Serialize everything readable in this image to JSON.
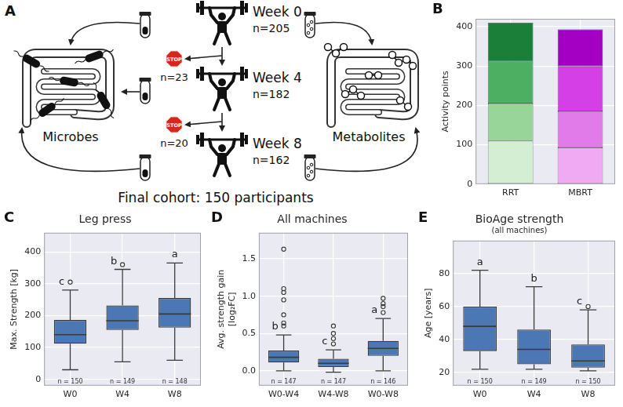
{
  "diagram": {
    "panel": "A",
    "stages": [
      {
        "label": "Week 0",
        "n": "n=205"
      },
      {
        "label": "Week 4",
        "n": "n=182"
      },
      {
        "label": "Week 8",
        "n": "n=162"
      }
    ],
    "dropouts": [
      {
        "sign": "STOP",
        "n": "n=23"
      },
      {
        "sign": "STOP",
        "n": "n=20"
      }
    ],
    "left": "Microbes",
    "right": "Metabolites",
    "footer": "Final cohort: 150 participants"
  },
  "chart_data": [
    {
      "type": "bar",
      "panel": "B",
      "y_label": "Activity points",
      "categories": [
        "RRT",
        "MBRT"
      ],
      "series": [
        {
          "colors": [
            "#d3eed3",
            "#f0aaf4"
          ],
          "values": [
            110,
            93
          ]
        },
        {
          "colors": [
            "#98d598",
            "#e27bea"
          ],
          "values": [
            95,
            92
          ]
        },
        {
          "colors": [
            "#4daf62",
            "#d43fe6"
          ],
          "values": [
            108,
            115
          ]
        },
        {
          "colors": [
            "#1b7f3a",
            "#a300c4"
          ],
          "values": [
            97,
            93
          ]
        }
      ],
      "stacked": true,
      "ylim": [
        0,
        420
      ],
      "yticks": [
        0,
        100,
        200,
        300,
        400
      ],
      "grid": true
    },
    {
      "type": "box",
      "panel": "C",
      "title": "Leg press",
      "y_label": "Max. Strength [kg]",
      "categories": [
        "W0",
        "W4",
        "W8"
      ],
      "boxes": [
        {
          "whislo": 30,
          "q1": 112,
          "med": 140,
          "q3": 186,
          "whishi": 280,
          "fliers": [
            305
          ]
        },
        {
          "whislo": 55,
          "q1": 155,
          "med": 184,
          "q3": 232,
          "whishi": 345,
          "fliers": [
            360
          ]
        },
        {
          "whislo": 60,
          "q1": 162,
          "med": 205,
          "q3": 255,
          "whishi": 365,
          "fliers": []
        }
      ],
      "n_labels": [
        "n = 150",
        "n = 149",
        "n = 148"
      ],
      "letters": [
        "c",
        "b",
        "a"
      ],
      "color": "#4b77b4",
      "ylim": [
        -20,
        460
      ],
      "yticks": [
        0,
        100,
        200,
        300,
        400
      ],
      "grid": true
    },
    {
      "type": "box",
      "panel": "D",
      "title": "All machines",
      "y_label": "Avg. strength gain [log₂FC]",
      "categories": [
        "W0-W4",
        "W4-W8",
        "W0-W8"
      ],
      "boxes": [
        {
          "whislo": 0.0,
          "q1": 0.11,
          "med": 0.18,
          "q3": 0.27,
          "whishi": 0.48,
          "fliers": [
            0.6,
            0.64,
            0.75,
            0.95,
            1.05,
            1.1,
            1.63
          ]
        },
        {
          "whislo": -0.02,
          "q1": 0.05,
          "med": 0.1,
          "q3": 0.16,
          "whishi": 0.28,
          "fliers": [
            0.36,
            0.43,
            0.5,
            0.6
          ]
        },
        {
          "whislo": 0.0,
          "q1": 0.2,
          "med": 0.3,
          "q3": 0.4,
          "whishi": 0.7,
          "fliers": [
            0.78,
            0.86,
            0.9,
            0.97
          ]
        }
      ],
      "n_labels": [
        "n = 147",
        "n = 147",
        "n = 146"
      ],
      "letters": [
        "b",
        "c",
        "a"
      ],
      "color": "#4b77b4",
      "ylim": [
        -0.2,
        1.85
      ],
      "yticks": [
        {
          "value": 0,
          "label": "0.0"
        },
        {
          "value": 0.5,
          "label": "0.5"
        },
        {
          "value": 1,
          "label": "1.0"
        },
        {
          "value": 1.5,
          "label": "1.5"
        }
      ],
      "grid": true
    },
    {
      "type": "box",
      "panel": "E",
      "title": "BioAge strength",
      "subtitle": "(all machines)",
      "y_label": "Age [years]",
      "categories": [
        "W0",
        "W4",
        "W8"
      ],
      "boxes": [
        {
          "whislo": 22,
          "q1": 33,
          "med": 48,
          "q3": 60,
          "whishi": 82,
          "fliers": []
        },
        {
          "whislo": 22,
          "q1": 25,
          "med": 34,
          "q3": 46,
          "whishi": 72,
          "fliers": []
        },
        {
          "whislo": 21,
          "q1": 23,
          "med": 27,
          "q3": 37,
          "whishi": 58,
          "fliers": [
            60
          ]
        }
      ],
      "n_labels": [
        "n = 150",
        "n = 149",
        "n = 150"
      ],
      "letters": [
        "a",
        "b",
        "c"
      ],
      "color": "#4b77b4",
      "ylim": [
        12,
        100
      ],
      "yticks": [
        20,
        40,
        60,
        80
      ],
      "grid": true
    }
  ]
}
